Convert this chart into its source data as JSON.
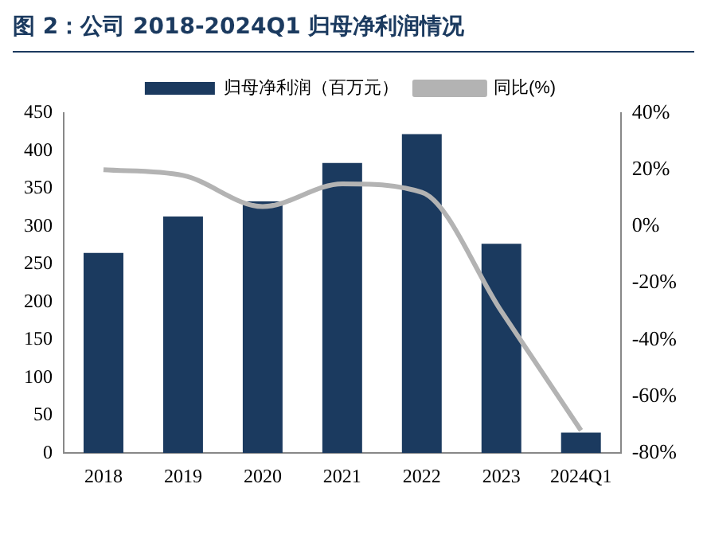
{
  "chart_data": {
    "type": "bar",
    "title": "图 2：公司 2018-2024Q1 归母净利润情况",
    "categories": [
      "2018",
      "2019",
      "2020",
      "2021",
      "2022",
      "2023",
      "2024Q1"
    ],
    "series": [
      {
        "name": "归母净利润（百万元）",
        "color": "#1b3a5f",
        "values": [
          265,
          313,
          333,
          384,
          422,
          277,
          27
        ]
      },
      {
        "name": "同比(%)",
        "type": "line",
        "axis": "y2",
        "color": "#b3b3b3",
        "values": [
          20,
          18,
          7,
          15,
          12,
          -30,
          -72
        ]
      }
    ],
    "ylim": [
      0,
      450
    ],
    "yticks": [
      0,
      50,
      100,
      150,
      200,
      250,
      300,
      350,
      400,
      450
    ],
    "y2lim": [
      -80,
      40
    ],
    "y2ticks": [
      {
        "value": -80,
        "label": "-80%"
      },
      {
        "value": -60,
        "label": "-60%"
      },
      {
        "value": -40,
        "label": "-40%"
      },
      {
        "value": -20,
        "label": "-20%"
      },
      {
        "value": 0,
        "label": "0%"
      },
      {
        "value": 20,
        "label": "20%"
      },
      {
        "value": 40,
        "label": "40%"
      }
    ],
    "legend": "top",
    "grid": false,
    "marker": "none"
  }
}
